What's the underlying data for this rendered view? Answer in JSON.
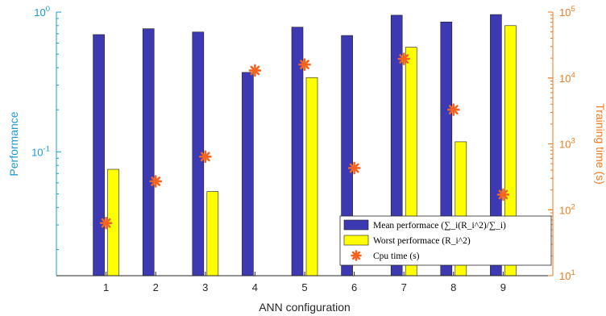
{
  "chart_data": {
    "type": "bar",
    "categories": [
      "1",
      "2",
      "3",
      "4",
      "5",
      "6",
      "7",
      "8",
      "9"
    ],
    "series": [
      {
        "name": "Mean performace (∑_i(R_i^2)/∑_i)",
        "axis": "left",
        "kind": "bar",
        "values": [
          0.69,
          0.76,
          0.72,
          0.37,
          0.78,
          0.68,
          0.95,
          0.85,
          0.96
        ]
      },
      {
        "name": "Worst performace (R_i^2)",
        "axis": "left",
        "kind": "bar",
        "values": [
          0.075,
          0.013,
          0.052,
          null,
          0.34,
          null,
          0.56,
          0.118,
          0.8
        ]
      },
      {
        "name": "Cpu time (s)",
        "axis": "right",
        "kind": "scatter",
        "values": [
          63,
          270,
          640,
          13000,
          16000,
          430,
          19500,
          3300,
          170
        ]
      }
    ],
    "xlabel": "ANN configuration",
    "ylabel_left": "Performance",
    "ylabel_right": "Training time (s)",
    "y_left_scale": "log",
    "y_right_scale": "log",
    "ylim_left": [
      0.013,
      1
    ],
    "ylim_right": [
      10,
      100000
    ],
    "y_left_ticks": [
      {
        "base": "10",
        "exp": "0",
        "value": 1
      },
      {
        "base": "10",
        "exp": "-1",
        "value": 0.1
      }
    ],
    "y_right_ticks": [
      {
        "base": "10",
        "exp": "1",
        "value": 10
      },
      {
        "base": "10",
        "exp": "2",
        "value": 100
      },
      {
        "base": "10",
        "exp": "3",
        "value": 1000
      },
      {
        "base": "10",
        "exp": "4",
        "value": 10000
      },
      {
        "base": "10",
        "exp": "5",
        "value": 100000
      }
    ],
    "grid": false,
    "legend_position": "bottom-right",
    "colors": {
      "mean_bar": "#3c39b3",
      "worst_bar": "#ffff00",
      "cpu_marker": "#f5641e",
      "left_axis": "#1b9bd3",
      "right_axis": "#ee7a1f"
    }
  }
}
